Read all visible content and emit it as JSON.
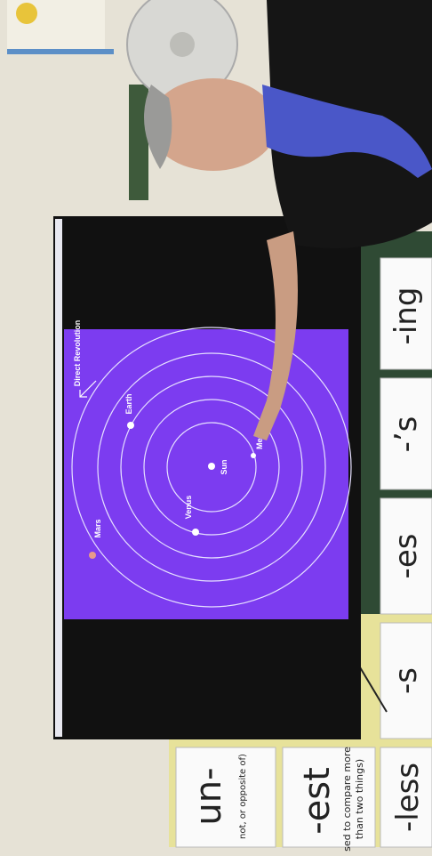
{
  "slide": {
    "direction_label": "Direct Revolution",
    "planets": {
      "sun": "Sun",
      "mercury": "Mer",
      "venus": "Venus",
      "earth": "Earth",
      "mars": "Mars"
    }
  },
  "cards": {
    "ing": "-ing",
    "possessive": "-’s",
    "es": "-es",
    "s": "-s",
    "less": "-less",
    "est": "-est",
    "est_note_1": "sed to compare more",
    "est_note_2": "than two things)",
    "un": "un-",
    "un_note": "not, or opposite of)"
  }
}
